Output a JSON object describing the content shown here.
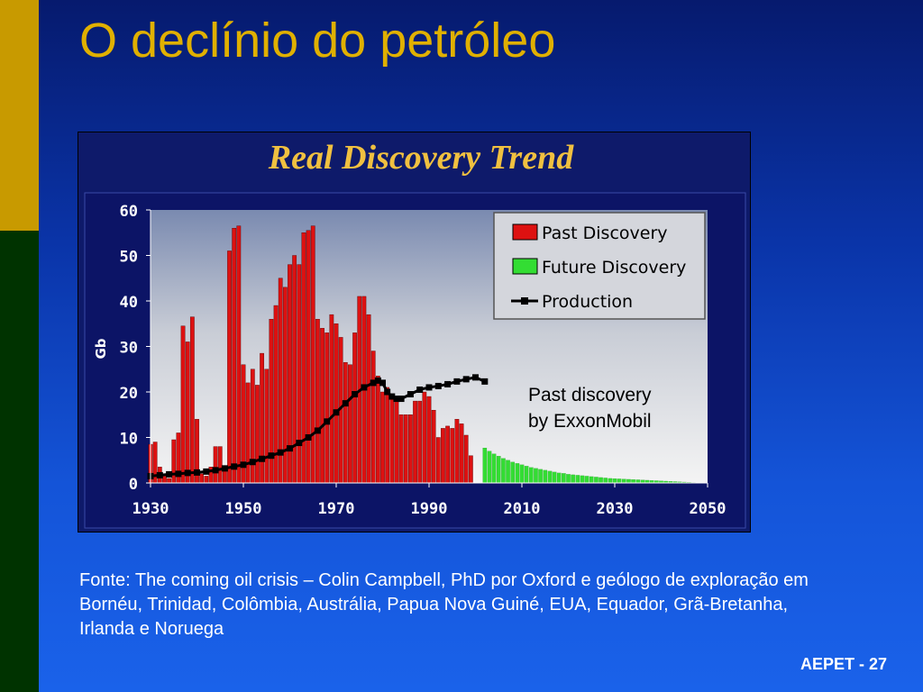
{
  "slide": {
    "title": "O declínio do petróleo",
    "source": "Fonte: The coming oil crisis – Colin Campbell, PhD  por Oxford e geólogo de exploração em Bornéu, Trinidad, Colômbia, Austrália, Papua Nova Guiné,  EUA, Equador, Grã-Bretanha, Irlanda e Noruega",
    "footer": "AEPET - 27",
    "colors": {
      "gold": "#c89a00",
      "green_bar": "#003300",
      "title": "#e0b000"
    }
  },
  "chart_data": {
    "type": "bar",
    "title": "Real Discovery Trend",
    "ylabel": "Gb",
    "xlabel": "",
    "ylim": [
      0,
      60
    ],
    "xlim": [
      1930,
      2050
    ],
    "yticks": [
      0,
      10,
      20,
      30,
      40,
      50,
      60
    ],
    "xticks": [
      1930,
      1950,
      1970,
      1990,
      2010,
      2030,
      2050
    ],
    "annotation": [
      "Past discovery",
      "by ExxonMobil"
    ],
    "legend": {
      "placement": "top-right",
      "entries": [
        "Past Discovery",
        "Future Discovery",
        "Production"
      ]
    },
    "series": [
      {
        "name": "Past Discovery",
        "color": "#dd1111",
        "kind": "bar",
        "start_year": 1930,
        "values": [
          8.5,
          9,
          3.5,
          1.5,
          1,
          9.5,
          11,
          34.5,
          31,
          36.5,
          14,
          2,
          1.5,
          3.5,
          8,
          8,
          3,
          51,
          56,
          56.5,
          26,
          22,
          25,
          21.5,
          28.5,
          25,
          36,
          39,
          45,
          43,
          48,
          50,
          48,
          55,
          55.5,
          56.5,
          36,
          34,
          33,
          37,
          35,
          32,
          26.5,
          26,
          33,
          41,
          41,
          37,
          29,
          23.5,
          20,
          21,
          18.5,
          18,
          15,
          15,
          15,
          18,
          18,
          20,
          19,
          16,
          10,
          12,
          12.5,
          12,
          14,
          13,
          10.5,
          6
        ]
      },
      {
        "name": "Future Discovery",
        "color": "#33dd33",
        "kind": "bar",
        "start_year": 2002,
        "values": [
          7.7,
          7,
          6.4,
          5.9,
          5.4,
          5,
          4.6,
          4.3,
          4,
          3.7,
          3.4,
          3.2,
          3,
          2.8,
          2.6,
          2.4,
          2.2,
          2.1,
          1.9,
          1.8,
          1.7,
          1.6,
          1.5,
          1.4,
          1.3,
          1.2,
          1.1,
          1,
          0.95,
          0.9,
          0.85,
          0.8,
          0.75,
          0.7,
          0.65,
          0.6,
          0.55,
          0.5,
          0.45,
          0.4,
          0.35,
          0.3,
          0.25,
          0.2,
          0.15,
          0.1,
          0.05,
          0.02
        ]
      },
      {
        "name": "Production",
        "color": "#000000",
        "kind": "line",
        "x": [
          1930,
          1932,
          1934,
          1936,
          1938,
          1940,
          1942,
          1944,
          1946,
          1948,
          1950,
          1952,
          1954,
          1956,
          1958,
          1960,
          1962,
          1964,
          1966,
          1968,
          1970,
          1972,
          1974,
          1976,
          1978,
          1979,
          1980,
          1981,
          1982,
          1983,
          1984,
          1986,
          1988,
          1990,
          1992,
          1994,
          1996,
          1998,
          2000,
          2002
        ],
        "y": [
          1.5,
          1.7,
          1.9,
          2,
          2.2,
          2.3,
          2.5,
          2.8,
          3.2,
          3.6,
          4,
          4.6,
          5.3,
          6,
          6.7,
          7.6,
          8.8,
          10,
          11.5,
          13.5,
          15.5,
          17.5,
          19.5,
          21,
          22,
          22.5,
          22,
          20,
          19,
          18.5,
          18.5,
          19.5,
          20.5,
          21,
          21.3,
          21.7,
          22.3,
          22.8,
          23.2,
          22.3
        ]
      }
    ]
  }
}
